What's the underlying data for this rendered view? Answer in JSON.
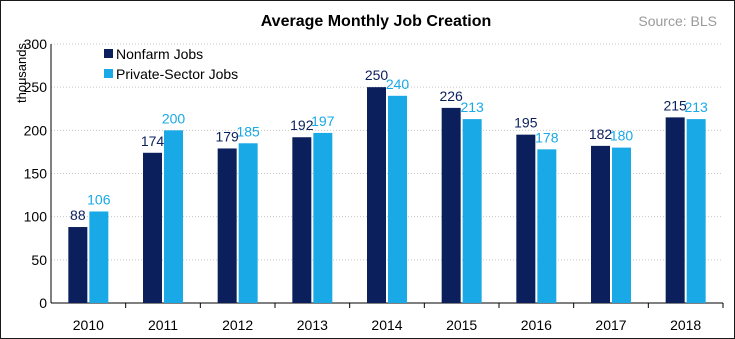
{
  "chart_data": {
    "type": "bar",
    "title": "Average Monthly Job Creation",
    "source": "Source: BLS",
    "ylabel": "thousands",
    "xlabel": "",
    "ylim": [
      0,
      300
    ],
    "yticks": [
      0,
      50,
      100,
      150,
      200,
      250,
      300
    ],
    "grid": true,
    "legend_position": "top-left",
    "categories": [
      "2010",
      "2011",
      "2012",
      "2013",
      "2014",
      "2015",
      "2016",
      "2017",
      "2018"
    ],
    "series": [
      {
        "name": "Nonfarm Jobs",
        "color": "#0b1f5c",
        "label_color": "#0b1f5c",
        "values": [
          88,
          174,
          179,
          192,
          250,
          226,
          195,
          182,
          215
        ]
      },
      {
        "name": "Private-Sector Jobs",
        "color": "#19a9e6",
        "label_color": "#19a9e6",
        "values": [
          106,
          200,
          185,
          197,
          240,
          213,
          178,
          180,
          213
        ]
      }
    ]
  }
}
